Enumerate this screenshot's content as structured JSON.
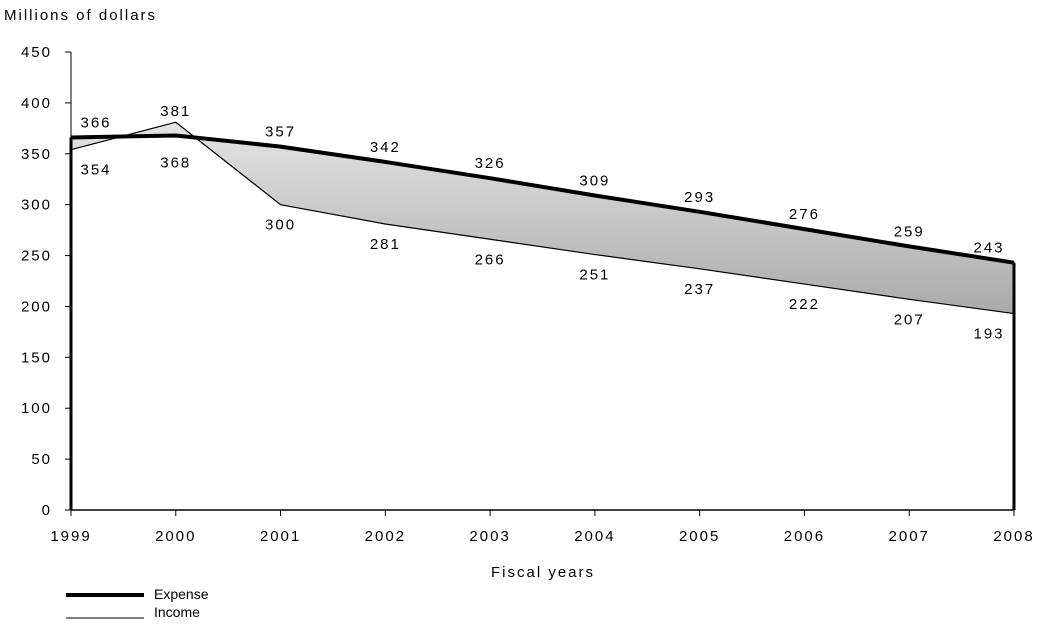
{
  "chart_data": {
    "type": "area",
    "ylabel": "Millions of dollars",
    "xlabel": "Fiscal years",
    "ylim": [
      0,
      450
    ],
    "y_ticks": [
      0,
      50,
      100,
      150,
      200,
      250,
      300,
      350,
      400,
      450
    ],
    "categories": [
      "1999",
      "2000",
      "2001",
      "2002",
      "2003",
      "2004",
      "2005",
      "2006",
      "2007",
      "2008"
    ],
    "series": [
      {
        "name": "Expense",
        "values": [
          366,
          368,
          357,
          342,
          326,
          309,
          293,
          276,
          259,
          243
        ]
      },
      {
        "name": "Income",
        "values": [
          354,
          381,
          300,
          281,
          266,
          251,
          237,
          222,
          207,
          193
        ]
      }
    ],
    "grid": false,
    "legend": "bottom-left",
    "fill_between_color": "#d3d3d3",
    "line_color": "#000000"
  }
}
